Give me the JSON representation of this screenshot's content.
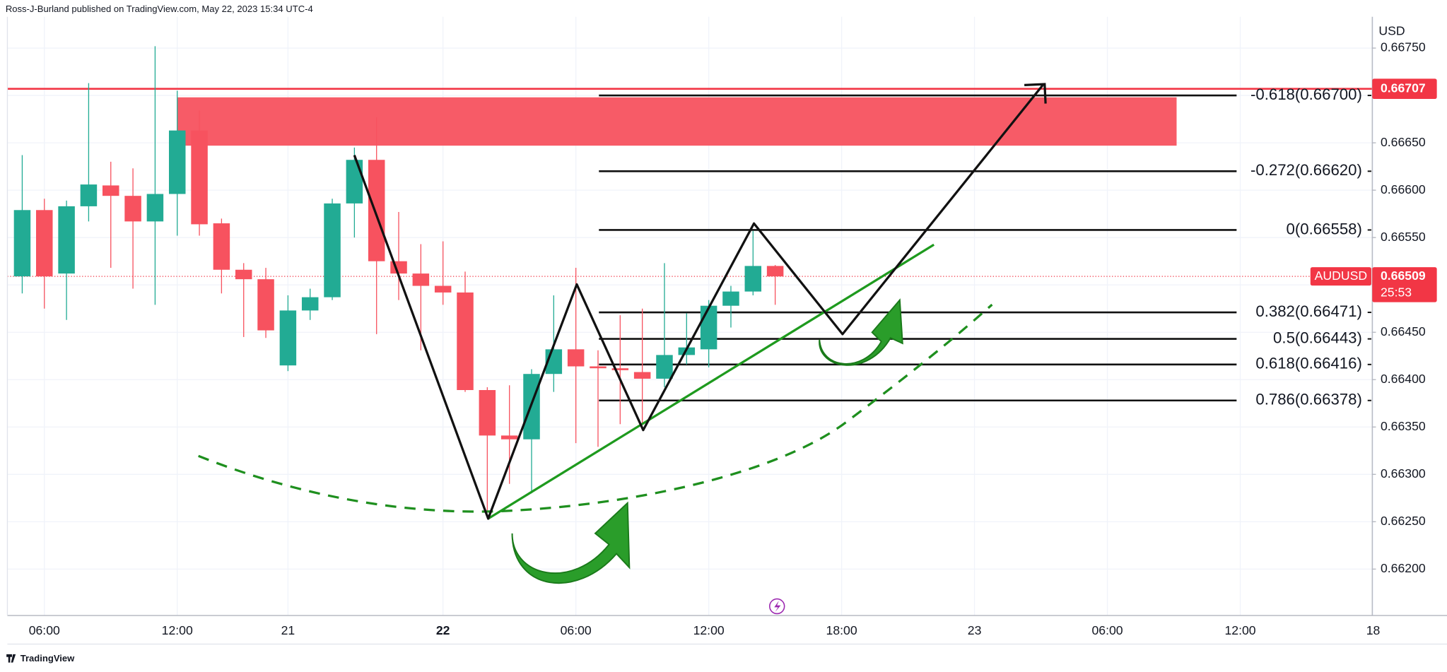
{
  "header": {
    "text": "Ross-J-Burland published on TradingView.com, May 22, 2023 15:34 UTC-4"
  },
  "footer": {
    "brand": "TradingView"
  },
  "chart_data": {
    "type": "candlestick",
    "symbol": "AUDUSD",
    "currency": "USD",
    "countdown": "25:53",
    "up_color": "#22ab94",
    "down_color": "#f7525f",
    "open": [
      0.66509,
      0.66579,
      0.66512,
      0.66583,
      0.66605,
      0.66594,
      0.66567,
      0.66596,
      0.66663,
      0.66565,
      0.66516,
      0.66506,
      0.66415,
      0.66473,
      0.66487,
      0.66586,
      0.66632,
      0.66525,
      0.66512,
      0.66499,
      0.66492,
      0.66389,
      0.66341,
      0.66337,
      0.66406,
      0.66432,
      0.66414,
      0.66412,
      0.66408,
      0.66401,
      0.66426,
      0.66432,
      0.66478,
      0.66493,
      0.6652
    ],
    "high": [
      0.66637,
      0.66591,
      0.66589,
      0.66713,
      0.6663,
      0.66623,
      0.66752,
      0.66705,
      0.66684,
      0.6657,
      0.66523,
      0.66518,
      0.66489,
      0.66496,
      0.66591,
      0.66645,
      0.66677,
      0.66577,
      0.66543,
      0.66546,
      0.66514,
      0.66392,
      0.66394,
      0.66411,
      0.66489,
      0.66518,
      0.66431,
      0.66468,
      0.66475,
      0.66523,
      0.6647,
      0.66484,
      0.66499,
      0.66557,
      0.66521
    ],
    "low": [
      0.66491,
      0.66475,
      0.66463,
      0.66567,
      0.66518,
      0.66496,
      0.66479,
      0.66552,
      0.66552,
      0.66491,
      0.66445,
      0.66444,
      0.66409,
      0.66463,
      0.66484,
      0.6655,
      0.66448,
      0.66484,
      0.66431,
      0.66479,
      0.66387,
      0.6626,
      0.6629,
      0.6628,
      0.66387,
      0.66333,
      0.66329,
      0.66353,
      0.66353,
      0.66392,
      0.66416,
      0.66413,
      0.66455,
      0.66489,
      0.66479
    ],
    "close": [
      0.66579,
      0.66509,
      0.66583,
      0.66606,
      0.66594,
      0.66567,
      0.66596,
      0.66663,
      0.66564,
      0.66516,
      0.66506,
      0.66452,
      0.66473,
      0.66487,
      0.66586,
      0.66632,
      0.66525,
      0.66512,
      0.66499,
      0.66492,
      0.66389,
      0.66341,
      0.66337,
      0.66406,
      0.66432,
      0.66414,
      0.66412,
      0.6641,
      0.66401,
      0.66426,
      0.66434,
      0.66478,
      0.66493,
      0.6652,
      0.66509
    ],
    "xlim": [
      -0.67,
      60.96
    ],
    "xticks": [
      {
        "value": 1,
        "label": "06:00"
      },
      {
        "value": 7,
        "label": "12:00"
      },
      {
        "value": 12,
        "label": "21"
      },
      {
        "value": 19,
        "label": "22"
      },
      {
        "value": 25,
        "label": "06:00"
      },
      {
        "value": 31,
        "label": "12:00"
      },
      {
        "value": 37,
        "label": "18:00"
      },
      {
        "value": 43,
        "label": "23"
      },
      {
        "value": 49,
        "label": "06:00"
      },
      {
        "value": 55,
        "label": "12:00"
      },
      {
        "value": 61,
        "label": "18"
      }
    ],
    "highlight_xtick": 3,
    "ylim": [
      0.66151,
      0.66783
    ],
    "yticks": [
      {
        "value": 0.662,
        "label": "0.66200"
      },
      {
        "value": 0.6625,
        "label": "0.66250"
      },
      {
        "value": 0.663,
        "label": "0.66300"
      },
      {
        "value": 0.6635,
        "label": "0.66350"
      },
      {
        "value": 0.664,
        "label": "0.66400"
      },
      {
        "value": 0.6645,
        "label": "0.66450"
      },
      {
        "value": 0.665,
        "label": "0.66500"
      },
      {
        "value": 0.6655,
        "label": "0.66550"
      },
      {
        "value": 0.666,
        "label": "0.66600"
      },
      {
        "value": 0.6665,
        "label": "0.66650"
      },
      {
        "value": 0.667,
        "label": "0.66700"
      },
      {
        "value": 0.6675,
        "label": "0.66750"
      }
    ],
    "resistance": 0.66707,
    "zone": [
      0.66647,
      0.66698
    ],
    "last_price": 0.66509,
    "fib_levels": [
      {
        "label": "-0.618(0.66700)",
        "value": 0.667
      },
      {
        "label": "-0.272(0.66620)",
        "value": 0.6662
      },
      {
        "label": "0(0.66558)",
        "value": 0.66558
      },
      {
        "label": "0.382(0.66471)",
        "value": 0.66471
      },
      {
        "label": "0.5(0.66443)",
        "value": 0.66443
      },
      {
        "label": "0.618(0.66416)",
        "value": 0.66416
      },
      {
        "label": "0.786(0.66378)",
        "value": 0.66378
      }
    ]
  }
}
